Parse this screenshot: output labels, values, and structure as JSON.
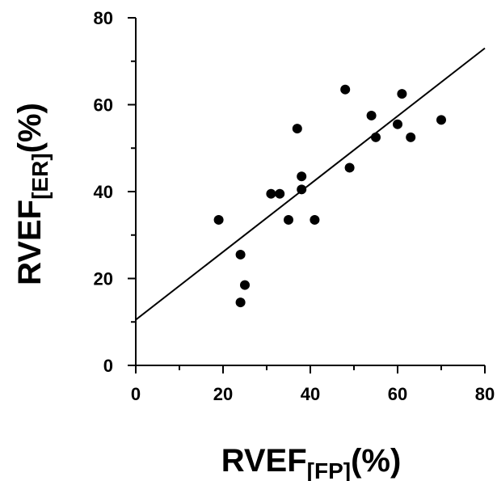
{
  "chart_data": {
    "type": "scatter",
    "xlabel": {
      "main": "RVEF",
      "sub": "[FP]",
      "unit": "(%)"
    },
    "ylabel": {
      "main": "RVEF",
      "sub": "[ER]",
      "unit": "(%)"
    },
    "xlim": [
      0,
      80
    ],
    "ylim": [
      0,
      80
    ],
    "xticks": [
      "0",
      "20",
      "40",
      "60",
      "80"
    ],
    "yticks": [
      "0",
      "20",
      "40",
      "60",
      "80"
    ],
    "grid": false,
    "points": [
      {
        "x": 19,
        "y": 33.5
      },
      {
        "x": 24,
        "y": 25.5
      },
      {
        "x": 25,
        "y": 18.5
      },
      {
        "x": 24,
        "y": 14.5
      },
      {
        "x": 31,
        "y": 39.5
      },
      {
        "x": 33,
        "y": 39.5
      },
      {
        "x": 35,
        "y": 33.5
      },
      {
        "x": 37,
        "y": 54.5
      },
      {
        "x": 38,
        "y": 43.5
      },
      {
        "x": 38,
        "y": 40.5
      },
      {
        "x": 41,
        "y": 33.5
      },
      {
        "x": 48,
        "y": 63.5
      },
      {
        "x": 49,
        "y": 45.5
      },
      {
        "x": 54,
        "y": 57.5
      },
      {
        "x": 55,
        "y": 52.5
      },
      {
        "x": 60,
        "y": 55.5
      },
      {
        "x": 61,
        "y": 62.5
      },
      {
        "x": 63,
        "y": 52.5
      },
      {
        "x": 70,
        "y": 56.5
      }
    ],
    "regression_line": {
      "x1": 0,
      "y1": 10.5,
      "x2": 80,
      "y2": 73
    }
  }
}
